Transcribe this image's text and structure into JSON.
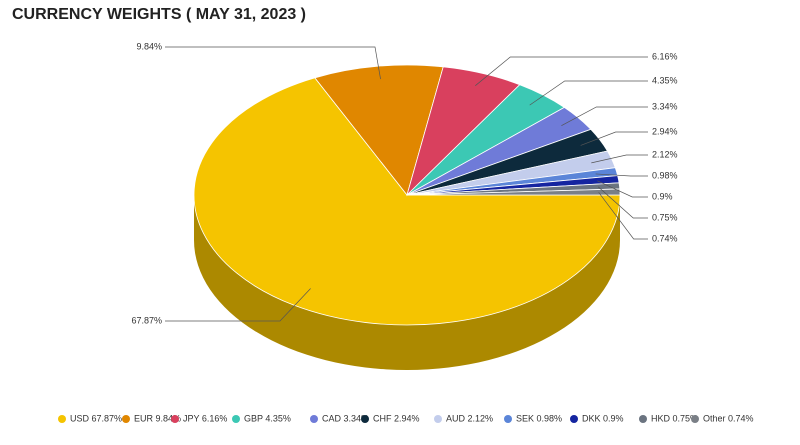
{
  "chart_data": {
    "type": "pie3d",
    "title": "CURRENCY WEIGHTS ( MAY 31, 2023 )",
    "categories": [
      "USD 67.87%",
      "EUR 9.84%",
      "JPY 6.16%",
      "GBP 4.35%",
      "CAD 3.34%",
      "CHF 2.94%",
      "AUD 2.12%",
      "SEK 0.98%",
      "DKK 0.9%",
      "HKD 0.75%",
      "Other 0.74%"
    ],
    "values": [
      67.87,
      9.84,
      6.16,
      4.35,
      3.34,
      2.94,
      2.12,
      0.98,
      0.9,
      0.75,
      0.74
    ],
    "value_labels": [
      "67.87%",
      "9.84%",
      "6.16%",
      "4.35%",
      "3.34%",
      "2.94%",
      "2.12%",
      "0.98%",
      "0.9%",
      "0.75%",
      "0.74%"
    ],
    "colors": [
      "#f5c400",
      "#e08700",
      "#d9405e",
      "#3cc8b4",
      "#6f7bd8",
      "#0d2a3c",
      "#c3cdec",
      "#5b85d8",
      "#1525a0",
      "#6b7480",
      "#7a7f86"
    ]
  }
}
